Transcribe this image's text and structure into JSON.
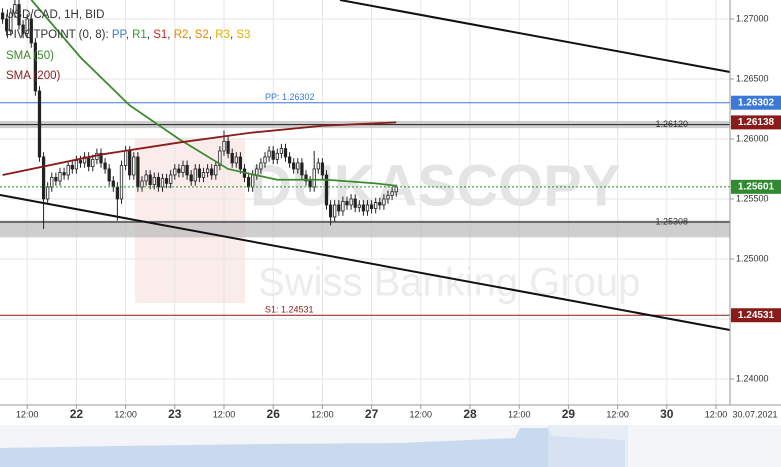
{
  "chart_data": {
    "type": "candlestick",
    "title": "USD/CAD, 1H, BID",
    "pivot_legend": {
      "label": "PIVOTPOINT (0, 8): ",
      "items": [
        {
          "text": "PP",
          "color": "#3b78d8"
        },
        {
          "text": "R1",
          "color": "#2e9a2e"
        },
        {
          "text": "S1",
          "color": "#cc2222"
        },
        {
          "text": "R2",
          "color": "#e68a00"
        },
        {
          "text": "S2",
          "color": "#e68a00"
        },
        {
          "text": "R3",
          "color": "#e0b000"
        },
        {
          "text": "S3",
          "color": "#e0b000"
        }
      ]
    },
    "watermark": {
      "brand": "DUKASCOPY",
      "tagline": "Swiss Banking Group"
    },
    "date_label": "30.07.2021",
    "xlim": [
      5.37,
      183.41
    ],
    "ylim": [
      1.23783,
      1.27158
    ],
    "xticks": [
      {
        "value": 12,
        "label": "12:00"
      },
      {
        "value": 24,
        "label": "22"
      },
      {
        "value": 36,
        "label": "12:00"
      },
      {
        "value": 48,
        "label": "23"
      },
      {
        "value": 60,
        "label": "12:00"
      },
      {
        "value": 72,
        "label": "26"
      },
      {
        "value": 84,
        "label": "12:00"
      },
      {
        "value": 96,
        "label": "27"
      },
      {
        "value": 108,
        "label": "12:00"
      },
      {
        "value": 120,
        "label": "28"
      },
      {
        "value": 132,
        "label": "12:00"
      },
      {
        "value": 144,
        "label": "29"
      },
      {
        "value": 156,
        "label": "12:00"
      },
      {
        "value": 168,
        "label": "30"
      },
      {
        "value": 180,
        "label": "12:00"
      }
    ],
    "yticks": [
      {
        "value": 1.27,
        "label": "1.27000"
      },
      {
        "value": 1.265,
        "label": "1.26500"
      },
      {
        "value": 1.26,
        "label": "1.26000"
      },
      {
        "value": 1.255,
        "label": "1.25500"
      },
      {
        "value": 1.25,
        "label": "1.25000"
      },
      {
        "value": 1.245,
        "label": "1.24500"
      },
      {
        "value": 1.24,
        "label": "1.24000"
      }
    ],
    "grid": true,
    "up_color": "#ffffff",
    "down_color": "#222222",
    "x": [
      6,
      7,
      8,
      9,
      10,
      11,
      12,
      13,
      14,
      15,
      16,
      17,
      18,
      19,
      20,
      21,
      22,
      23,
      24,
      25,
      26,
      27,
      28,
      29,
      30,
      31,
      32,
      33,
      34,
      35,
      36,
      37,
      38,
      39,
      40,
      41,
      42,
      43,
      44,
      45,
      46,
      47,
      48,
      49,
      50,
      51,
      52,
      53,
      54,
      55,
      56,
      57,
      58,
      59,
      60,
      61,
      62,
      63,
      64,
      65,
      66,
      67,
      68,
      69,
      70,
      71,
      72,
      73,
      74,
      75,
      76,
      77,
      78,
      79,
      80,
      81,
      82,
      83,
      84,
      85,
      86,
      87,
      88,
      89,
      90,
      91,
      92,
      93,
      94,
      95,
      96,
      97,
      98,
      99,
      100,
      101,
      102
    ],
    "open": [
      1.2705,
      1.27,
      1.269,
      1.2705,
      1.2712,
      1.2695,
      1.2688,
      1.27,
      1.268,
      1.264,
      1.2585,
      1.255,
      1.256,
      1.2568,
      1.2565,
      1.2572,
      1.257,
      1.2578,
      1.2575,
      1.2582,
      1.258,
      1.2585,
      1.2577,
      1.2583,
      1.2588,
      1.258,
      1.2575,
      1.2565,
      1.256,
      1.255,
      1.2578,
      1.259,
      1.257,
      1.2585,
      1.256,
      1.2565,
      1.257,
      1.2562,
      1.2568,
      1.256,
      1.2567,
      1.2563,
      1.257,
      1.2575,
      1.2572,
      1.2578,
      1.257,
      1.2565,
      1.2575,
      1.2568,
      1.2572,
      1.2575,
      1.257,
      1.2578,
      1.259,
      1.2598,
      1.2588,
      1.258,
      1.2585,
      1.2575,
      1.2568,
      1.256,
      1.257,
      1.2575,
      1.258,
      1.2585,
      1.259,
      1.2583,
      1.2588,
      1.2592,
      1.2585,
      1.258,
      1.2575,
      1.258,
      1.257,
      1.2565,
      1.256,
      1.2575,
      1.258,
      1.257,
      1.2545,
      1.2535,
      1.2545,
      1.254,
      1.2548,
      1.2545,
      1.255,
      1.2543,
      1.2545,
      1.254,
      1.2545,
      1.2542,
      1.2547,
      1.2545,
      1.255,
      1.2553,
      1.2556
    ],
    "high": [
      1.2709,
      1.2704,
      1.2709,
      1.2716,
      1.2716,
      1.2699,
      1.2704,
      1.2704,
      1.2684,
      1.2644,
      1.2589,
      1.2564,
      1.2572,
      1.2572,
      1.2576,
      1.2576,
      1.2582,
      1.2582,
      1.2586,
      1.2586,
      1.2589,
      1.2589,
      1.2587,
      1.2592,
      1.2592,
      1.2584,
      1.2579,
      1.2569,
      1.2564,
      1.2582,
      1.2594,
      1.2594,
      1.2589,
      1.2589,
      1.2569,
      1.2574,
      1.2574,
      1.2572,
      1.2572,
      1.2571,
      1.2571,
      1.2574,
      1.2579,
      1.2579,
      1.2582,
      1.2582,
      1.2574,
      1.2579,
      1.2579,
      1.2576,
      1.2579,
      1.2579,
      1.2582,
      1.2594,
      1.2607,
      1.2602,
      1.2592,
      1.2589,
      1.2589,
      1.2579,
      1.2572,
      1.2574,
      1.2579,
      1.2584,
      1.2589,
      1.2594,
      1.2594,
      1.2592,
      1.2596,
      1.2596,
      1.2589,
      1.2584,
      1.2584,
      1.2584,
      1.2574,
      1.2569,
      1.259,
      1.2584,
      1.2584,
      1.2574,
      1.2549,
      1.2549,
      1.2549,
      1.2552,
      1.2552,
      1.2554,
      1.2554,
      1.2549,
      1.2549,
      1.2549,
      1.2549,
      1.2551,
      1.2551,
      1.2554,
      1.2557,
      1.256,
      1.2562
    ],
    "low": [
      1.2696,
      1.2686,
      1.2686,
      1.2701,
      1.2691,
      1.2684,
      1.2684,
      1.2676,
      1.2636,
      1.2581,
      1.2525,
      1.2546,
      1.2556,
      1.2561,
      1.2561,
      1.2566,
      1.2566,
      1.2571,
      1.2571,
      1.2576,
      1.2576,
      1.2573,
      1.2573,
      1.2579,
      1.2576,
      1.2571,
      1.2561,
      1.2556,
      1.2532,
      1.2546,
      1.2574,
      1.2566,
      1.2566,
      1.2556,
      1.2556,
      1.2561,
      1.2558,
      1.2558,
      1.2556,
      1.2556,
      1.2559,
      1.2559,
      1.2566,
      1.2568,
      1.2568,
      1.2566,
      1.2561,
      1.2561,
      1.2564,
      1.2564,
      1.2568,
      1.2566,
      1.2566,
      1.2574,
      1.2586,
      1.2584,
      1.2576,
      1.2576,
      1.2571,
      1.2564,
      1.2556,
      1.2556,
      1.2566,
      1.2571,
      1.2576,
      1.2581,
      1.2579,
      1.2579,
      1.2584,
      1.2581,
      1.2576,
      1.2571,
      1.2571,
      1.2566,
      1.2561,
      1.2556,
      1.2556,
      1.2571,
      1.2566,
      1.2541,
      1.2528,
      1.2531,
      1.2536,
      1.2536,
      1.2541,
      1.2541,
      1.2539,
      1.2539,
      1.2536,
      1.2536,
      1.2538,
      1.2538,
      1.2541,
      1.2541,
      1.2546,
      1.2549,
      1.2552
    ],
    "close": [
      1.27,
      1.269,
      1.2705,
      1.2712,
      1.2695,
      1.2688,
      1.27,
      1.268,
      1.264,
      1.2585,
      1.255,
      1.256,
      1.2568,
      1.2565,
      1.2572,
      1.257,
      1.2578,
      1.2575,
      1.2582,
      1.258,
      1.2585,
      1.2577,
      1.2583,
      1.2588,
      1.258,
      1.2575,
      1.2565,
      1.256,
      1.255,
      1.2578,
      1.259,
      1.257,
      1.2585,
      1.256,
      1.2565,
      1.257,
      1.2562,
      1.2568,
      1.256,
      1.2567,
      1.2563,
      1.257,
      1.2575,
      1.2572,
      1.2578,
      1.257,
      1.2565,
      1.2575,
      1.2568,
      1.2572,
      1.2575,
      1.257,
      1.2578,
      1.259,
      1.2598,
      1.2588,
      1.258,
      1.2585,
      1.2575,
      1.2568,
      1.256,
      1.257,
      1.2575,
      1.258,
      1.2585,
      1.259,
      1.2583,
      1.2588,
      1.2592,
      1.2585,
      1.258,
      1.2575,
      1.258,
      1.257,
      1.2565,
      1.256,
      1.2575,
      1.258,
      1.257,
      1.2545,
      1.2535,
      1.2545,
      1.254,
      1.2548,
      1.2545,
      1.255,
      1.2543,
      1.2545,
      1.254,
      1.2545,
      1.2542,
      1.2547,
      1.2545,
      1.255,
      1.2553,
      1.2556,
      1.25601
    ],
    "series": [
      {
        "name": "SMA (50)",
        "color": "#3d8a2e",
        "x": [
          13,
          25,
          37,
          49,
          61,
          73,
          85,
          97,
          102
        ],
        "values": [
          1.2716,
          1.2668,
          1.2628,
          1.26,
          1.2575,
          1.2566,
          1.2566,
          1.2563,
          1.2561
        ]
      },
      {
        "name": "SMA (200)",
        "color": "#8b1a1a",
        "x": [
          6,
          30,
          49,
          66,
          84,
          102
        ],
        "values": [
          1.257,
          1.2587,
          1.2597,
          1.2605,
          1.2611,
          1.26138
        ],
        "tag": "1.26138"
      }
    ],
    "trendlines": [
      {
        "x": [
          88.3,
          183.41
        ],
        "y": [
          1.27158,
          1.26558
        ]
      },
      {
        "x": [
          5.37,
          183.41
        ],
        "y": [
          1.25533,
          1.24408
        ]
      }
    ],
    "zones": [
      {
        "value": 1.2612,
        "label": "1.26120",
        "from": 1.2615,
        "to": 1.2609
      },
      {
        "value": 1.25308,
        "label": "1.25308",
        "from": 1.2532,
        "to": 1.2518
      }
    ],
    "levels": [
      {
        "value": 1.26302,
        "label": "PP: 1.26302",
        "tag": "1.26302",
        "color": "#3b78d8"
      },
      {
        "value": 1.24531,
        "label": "S1: 1.24531",
        "tag": "1.24531",
        "color": "#8b1a1a"
      }
    ],
    "last_price": {
      "value": 1.25601,
      "tag": "1.25601",
      "color": "#2e8b2e"
    }
  }
}
